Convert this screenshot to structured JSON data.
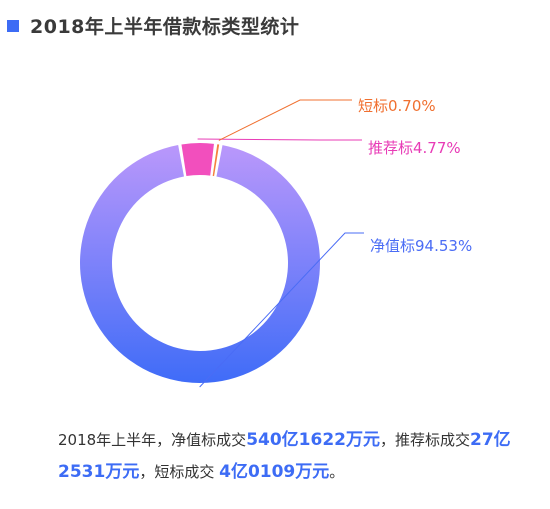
{
  "header": {
    "title": "2018年上半年借款标类型统计"
  },
  "chart_data": {
    "type": "pie",
    "variant": "donut",
    "title": "2018年上半年借款标类型统计",
    "slices": [
      {
        "label": "净值标",
        "value": 94.53,
        "display": "净值标94.53%",
        "color_start": "#bb98fb",
        "color_end": "#3f6cf8",
        "label_color": "#4a6cf5"
      },
      {
        "label": "推荐标",
        "value": 4.77,
        "display": "推荐标4.77%",
        "color_start": "#f24fbd",
        "color_end": "#f24fbd",
        "label_color": "#e83bb6"
      },
      {
        "label": "短标",
        "value": 0.7,
        "display": "短标0.70%",
        "color_start": "#f5803e",
        "color_end": "#f5803e",
        "label_color": "#f07030"
      }
    ]
  },
  "summary": {
    "p1": "2018年上半年，净值标成交",
    "v1": "540亿1622万元",
    "p2": "，推荐标成交",
    "v2": "27亿2531万元",
    "p3": "，短标成交 ",
    "v3": "4亿0109万元",
    "p4": "。"
  }
}
